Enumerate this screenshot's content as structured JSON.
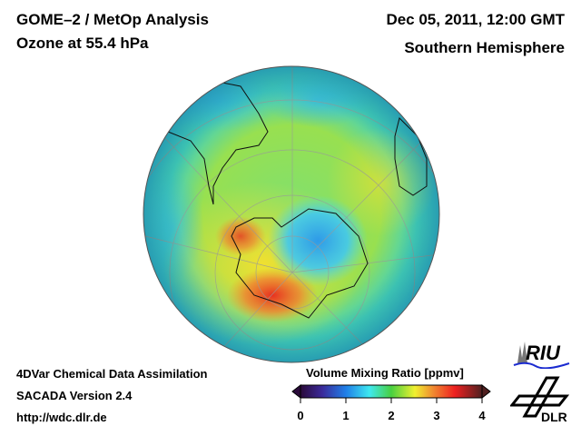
{
  "header": {
    "title": "GOME–2 / MetOp Analysis",
    "subtitle": "Ozone at 55.4 hPa",
    "datetime": "Dec 05, 2011, 12:00 GMT",
    "region": "Southern Hemisphere"
  },
  "footer": {
    "line1": "4DVar Chemical Data Assimilation",
    "line2": "SACADA Version 2.4",
    "line3": "http://wdc.dlr.de"
  },
  "colorbar": {
    "title": "Volume Mixing Ratio [ppmv]",
    "ticks": [
      "0",
      "1",
      "2",
      "3",
      "4"
    ],
    "range": [
      0,
      4
    ],
    "colors": [
      "#2a0a3a",
      "#3b2a9a",
      "#1f7fe8",
      "#3ee8f0",
      "#48d040",
      "#f0f030",
      "#f08a30",
      "#ee2020",
      "#502020"
    ]
  },
  "logos": {
    "riu": "RIU",
    "dlr": "DLR"
  }
}
